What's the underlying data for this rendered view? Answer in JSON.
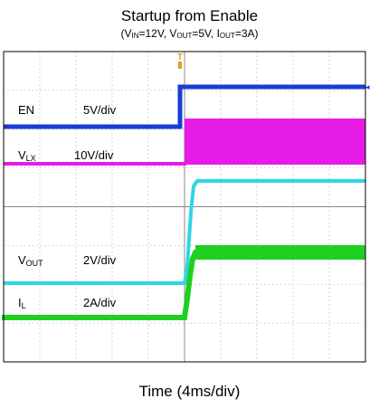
{
  "chart_data": {
    "type": "line",
    "title": "Startup from Enable",
    "subtitle": {
      "open": "(V",
      "vin_sub": "IN",
      "vin_val": "=12V, V",
      "vout_sub": "OUT",
      "vout_val": "=5V, I",
      "iout_sub": "OUT",
      "close": "=3A)"
    },
    "xlabel": "Time (4ms/div)",
    "grid": true,
    "divisions": {
      "x": 10,
      "y": 8
    },
    "trigger_marker": "T",
    "series": [
      {
        "name": "EN",
        "scale": "5V/div",
        "color": "#1a3cd6"
      },
      {
        "name": "V",
        "name_sub": "LX",
        "scale": "10V/div",
        "color": "#e61ce6"
      },
      {
        "name": "V",
        "name_sub": "OUT",
        "scale": "2V/div",
        "color": "#2ed6e6"
      },
      {
        "name": "I",
        "name_sub": "L",
        "scale": "2A/div",
        "color": "#20d020"
      }
    ]
  }
}
